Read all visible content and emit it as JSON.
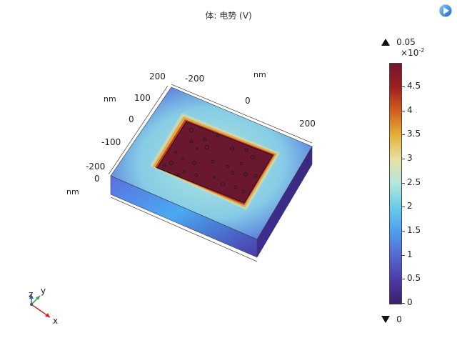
{
  "plot": {
    "title": "体: 电势 (V)",
    "units": {
      "nm_top": "nm",
      "nm_left1": "nm",
      "nm_left2": "nm"
    },
    "axis_ticks": {
      "top_row": [
        "-200",
        "0",
        "200"
      ],
      "top_left_extra": "200",
      "left_col": [
        "100",
        "0",
        "-100",
        "-200"
      ],
      "left_zero": "0"
    },
    "axes_triad": {
      "z": "z",
      "y": "y",
      "x": "x"
    }
  },
  "colorbar": {
    "max_label": "0.05",
    "exponent": "×10",
    "exponent_power": "-2",
    "min_label": "0",
    "ticks": [
      "4.5",
      "4",
      "3.5",
      "3",
      "2.5",
      "2",
      "1.5",
      "1",
      "0.5",
      "0"
    ],
    "colors": [
      "#3b1f6e",
      "#5667d2",
      "#69cbe6",
      "#b4e6dc",
      "#e3b23a",
      "#d2611e",
      "#6f1630"
    ]
  },
  "toolbar": {
    "logo_icon": "comsol-logo-icon"
  }
}
